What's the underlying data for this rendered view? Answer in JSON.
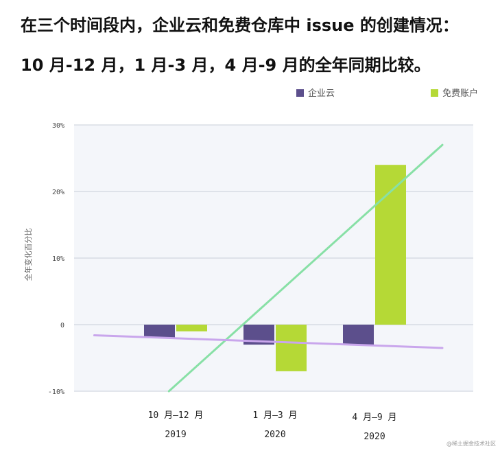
{
  "title_line1": "在三个时间段内，企业云和免费仓库中 issue 的创建情况：",
  "title_line2": "10 月-12 月，1 月-3 月，4 月-9 月的全年同期比较。",
  "credit": "@稀土掘金技术社区",
  "chart_data": {
    "type": "bar",
    "ylabel": "全年变化百分比",
    "ylim": [
      -10,
      30
    ],
    "yticks": [
      -10,
      0,
      10,
      20,
      30
    ],
    "ytick_labels": [
      "-10%",
      "0",
      "10%",
      "20%",
      "30%"
    ],
    "categories": [
      {
        "period": "10 月—12 月",
        "year": "2019"
      },
      {
        "period": "1 月—3 月",
        "year": "2020"
      },
      {
        "period": "4 月—9 月",
        "year": "2020"
      }
    ],
    "series": [
      {
        "name": "企业云",
        "color": "#5c4f8c",
        "values": [
          -2,
          -3,
          -3
        ]
      },
      {
        "name": "免费账户",
        "color": "#b5d936",
        "values": [
          -1,
          -7,
          24
        ]
      }
    ],
    "trendlines": [
      {
        "color": "#88e0a6",
        "from": {
          "x": 0.25,
          "y": -10
        },
        "to": {
          "x": 3,
          "y": 27
        }
      },
      {
        "color": "#c9a6ec",
        "from": {
          "x": -0.5,
          "y": -1.6
        },
        "to": {
          "x": 3,
          "y": -3.5
        }
      }
    ],
    "legend_position": "top-right",
    "plot_background": "#f4f6fa",
    "grid": true
  }
}
